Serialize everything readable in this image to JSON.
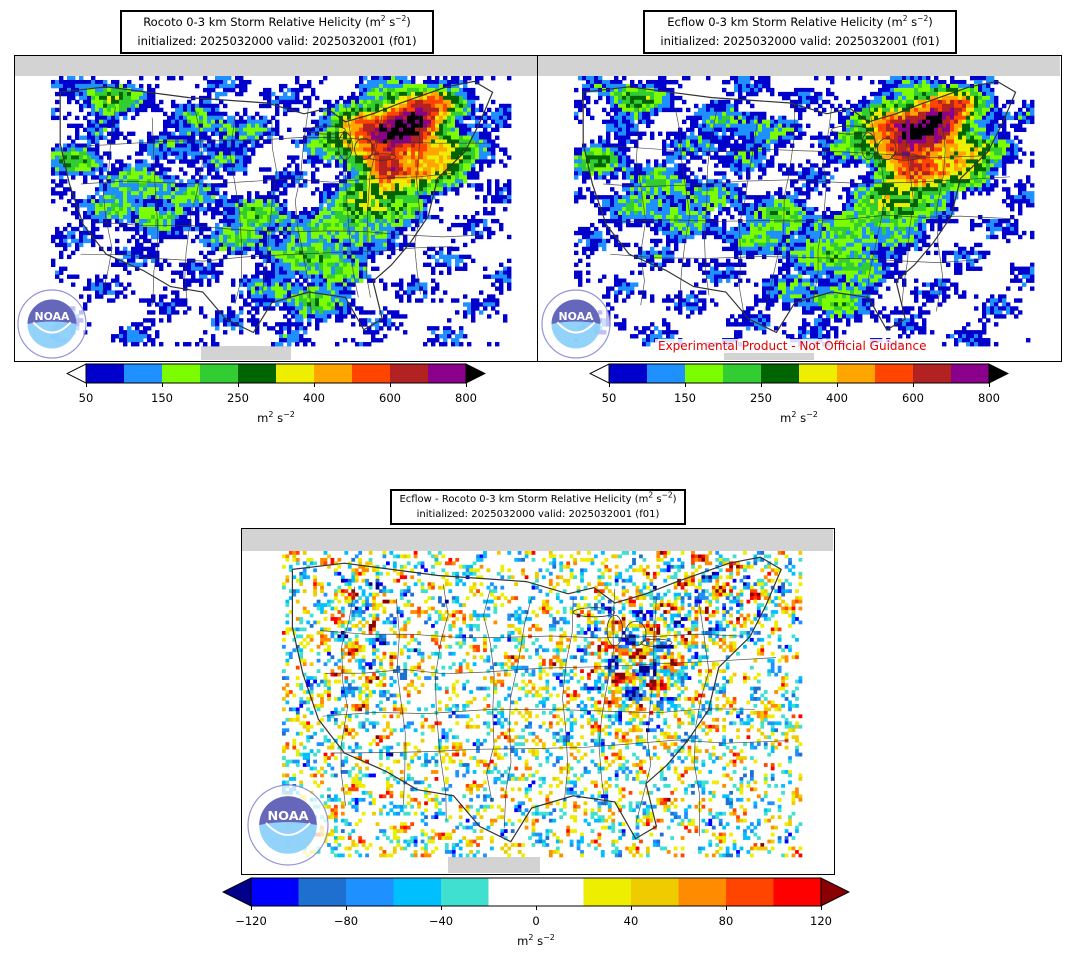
{
  "panels": [
    {
      "title_model": "Rocoto",
      "title_rest": "0-3 km Storm Relative Helicity (m",
      "title_init": "initialized: 2025032000 valid: 2025032001 (f01)"
    },
    {
      "title_model": "Ecflow",
      "title_rest": "0-3 km Storm Relative Helicity (m",
      "title_init": "initialized: 2025032000 valid: 2025032001 (f01)"
    },
    {
      "title_model": "Ecflow - Rocoto",
      "title_rest": "0-3 km Storm Relative Helicity (m",
      "title_init": "initialized: 2025032000 valid: 2025032001 (f01)"
    }
  ],
  "disclaimer": "Experimental Product - Not Official Guidance",
  "logo_text": "NOAA",
  "colorbars": {
    "srh": {
      "colors": [
        "#0000cd",
        "#1e90ff",
        "#7cfc00",
        "#32cd32",
        "#006400",
        "#eeee00",
        "#ffa500",
        "#ff4500",
        "#b22222",
        "#8b008b"
      ],
      "under_color": "#ffffff",
      "over_color": "#000000",
      "ticks": [
        "50",
        "150",
        "250",
        "400",
        "600",
        "800"
      ],
      "tick_index": [
        0,
        2,
        4,
        6,
        8,
        10
      ],
      "unit": "m",
      "unit_exp1": "2",
      "unit_mid": " s",
      "unit_exp2": "−2"
    },
    "diff": {
      "colors": [
        "#0000ff",
        "#1e6fcf",
        "#1e90ff",
        "#00bfff",
        "#40e0d0",
        "#ffffff",
        "#ffffff",
        "#eeee00",
        "#eecc00",
        "#ff8c00",
        "#ff4500",
        "#ff0000"
      ],
      "under_color": "#00008b",
      "over_color": "#8b0000",
      "ticks": [
        "−120",
        "−80",
        "−40",
        "0",
        "40",
        "80",
        "120"
      ],
      "tick_index": [
        0,
        2,
        4,
        6,
        8,
        10,
        12
      ],
      "unit": "m",
      "unit_exp1": "2",
      "unit_mid": " s",
      "unit_exp2": "−2"
    }
  },
  "colors": {
    "land": "#ffffff",
    "ocean_fill": "#ffffff",
    "mask": "#d3d3d3",
    "boundaries": "#333333"
  }
}
